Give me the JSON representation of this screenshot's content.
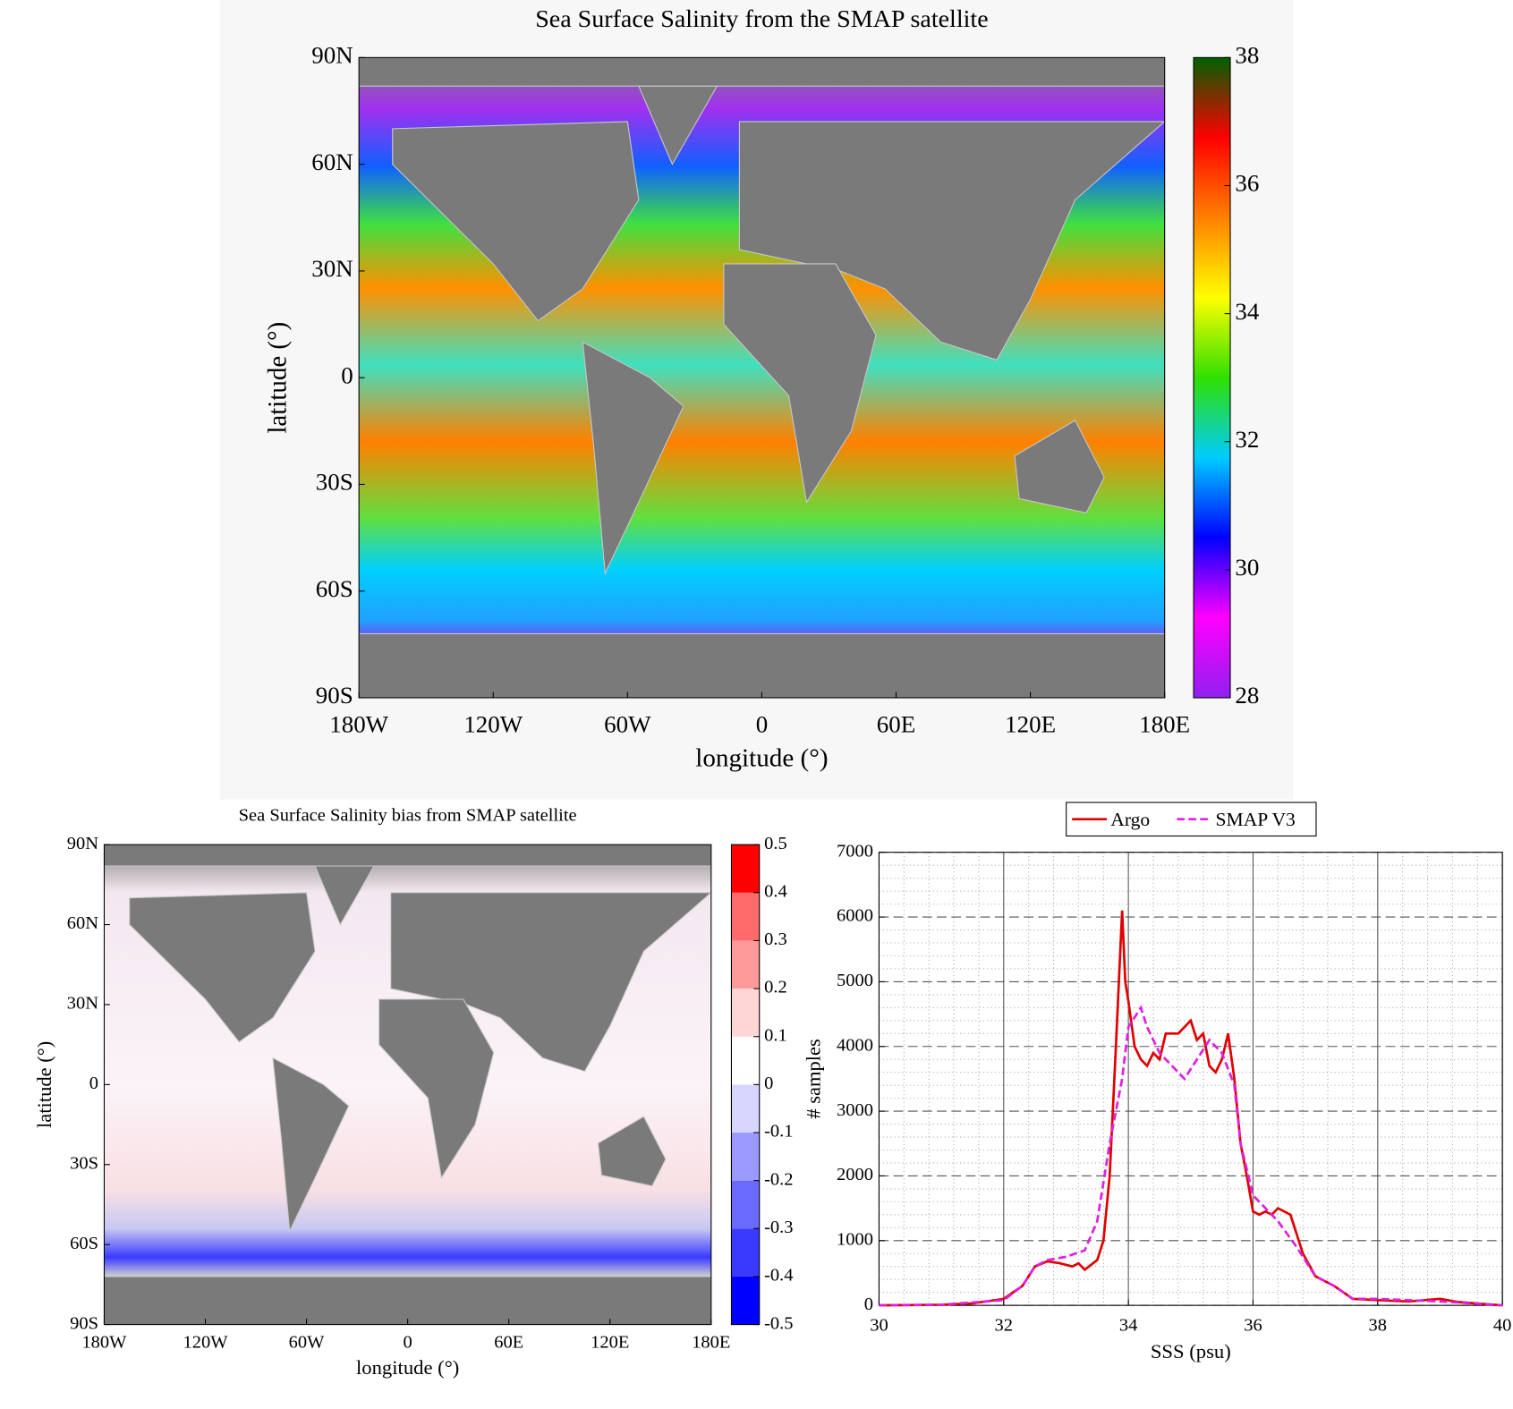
{
  "chart_data": [
    {
      "type": "map",
      "title": "Sea Surface Salinity from the SMAP satellite",
      "xlabel": "longitude (°)",
      "ylabel": "latitude (°)",
      "xlim": [
        -180,
        180
      ],
      "ylim": [
        -90,
        90
      ],
      "xticks": [
        {
          "value": -180,
          "label": "180W"
        },
        {
          "value": -120,
          "label": "120W"
        },
        {
          "value": -60,
          "label": "60W"
        },
        0,
        {
          "value": 60,
          "label": "60E"
        },
        {
          "value": 120,
          "label": "120E"
        },
        {
          "value": 180,
          "label": "180E"
        }
      ],
      "yticks": [
        {
          "value": -90,
          "label": "90S"
        },
        {
          "value": -60,
          "label": "60S"
        },
        {
          "value": -30,
          "label": "30S"
        },
        0,
        {
          "value": 30,
          "label": "30N"
        },
        {
          "value": 60,
          "label": "60N"
        },
        {
          "value": 90,
          "label": "90N"
        }
      ],
      "colorbar": {
        "lim": [
          28,
          38
        ],
        "ticks": [
          28,
          30,
          32,
          34,
          36,
          38
        ],
        "colors": [
          "#9020f0",
          "#ff00ff",
          "#0000ff",
          "#00ccff",
          "#30e000",
          "#ffff00",
          "#ff8000",
          "#ff0000",
          "#006000"
        ],
        "discrete": false
      }
    },
    {
      "type": "map",
      "title": "Sea Surface Salinity bias from SMAP satellite",
      "xlabel": "longitude (°)",
      "ylabel": "latitude (°)",
      "xlim": [
        -180,
        180
      ],
      "ylim": [
        -90,
        90
      ],
      "xticks": [
        {
          "value": -180,
          "label": "180W"
        },
        {
          "value": -120,
          "label": "120W"
        },
        {
          "value": -60,
          "label": "60W"
        },
        0,
        {
          "value": 60,
          "label": "60E"
        },
        {
          "value": 120,
          "label": "120E"
        },
        {
          "value": 180,
          "label": "180E"
        }
      ],
      "yticks": [
        {
          "value": -90,
          "label": "90S"
        },
        {
          "value": -60,
          "label": "60S"
        },
        {
          "value": -30,
          "label": "30S"
        },
        0,
        {
          "value": 30,
          "label": "30N"
        },
        {
          "value": 60,
          "label": "60N"
        },
        {
          "value": 90,
          "label": "90N"
        }
      ],
      "colorbar": {
        "lim": [
          -0.5,
          0.5
        ],
        "ticks": [
          -0.5,
          -0.4,
          -0.3,
          -0.2,
          -0.1,
          0,
          0.1,
          0.2,
          0.3,
          0.4,
          0.5
        ],
        "colors": [
          "#0000ff",
          "#3a3aff",
          "#6a6aff",
          "#9a9aff",
          "#d6d6ff",
          "#ffffff",
          "#ffd6d6",
          "#ff9a9a",
          "#ff6a6a",
          "#ff0000"
        ],
        "discrete": true
      }
    },
    {
      "type": "line",
      "xlabel": "SSS (psu)",
      "ylabel": "# samples",
      "xlim": [
        30,
        40
      ],
      "ylim": [
        0,
        7000
      ],
      "xticks": [
        30,
        32,
        34,
        36,
        38,
        40
      ],
      "yticks": [
        0,
        1000,
        2000,
        3000,
        4000,
        5000,
        6000,
        7000
      ],
      "grid": true,
      "legend": "top",
      "series": [
        {
          "name": "Argo",
          "color": "#e00000",
          "dash": false,
          "x": [
            30,
            31,
            31.5,
            32,
            32.3,
            32.5,
            32.7,
            32.9,
            33.1,
            33.2,
            33.3,
            33.5,
            33.6,
            33.7,
            33.8,
            33.9,
            33.95,
            34.0,
            34.1,
            34.2,
            34.3,
            34.4,
            34.5,
            34.6,
            34.8,
            35.0,
            35.1,
            35.2,
            35.3,
            35.4,
            35.5,
            35.6,
            35.7,
            35.8,
            35.9,
            36.0,
            36.1,
            36.2,
            36.3,
            36.4,
            36.6,
            36.8,
            37.0,
            37.3,
            37.6,
            38,
            38.5,
            39,
            39.3,
            40
          ],
          "values": [
            0,
            10,
            30,
            100,
            300,
            600,
            680,
            650,
            600,
            650,
            550,
            700,
            1000,
            2000,
            4000,
            6100,
            5000,
            4700,
            4000,
            3800,
            3700,
            3900,
            3800,
            4200,
            4200,
            4400,
            4100,
            4200,
            3700,
            3600,
            3800,
            4200,
            3500,
            2500,
            2000,
            1450,
            1400,
            1450,
            1400,
            1500,
            1400,
            800,
            450,
            300,
            100,
            80,
            60,
            100,
            50,
            0
          ]
        },
        {
          "name": "SMAP V3",
          "color": "#e020e0",
          "dash": true,
          "x": [
            30,
            31,
            32,
            32.3,
            32.5,
            32.7,
            33.0,
            33.3,
            33.5,
            33.7,
            33.9,
            34.0,
            34.2,
            34.3,
            34.5,
            34.7,
            34.9,
            35.1,
            35.3,
            35.5,
            35.7,
            35.8,
            36.0,
            36.2,
            36.4,
            36.7,
            37.0,
            37.3,
            37.6,
            38,
            38.5,
            39,
            40
          ],
          "values": [
            0,
            10,
            80,
            300,
            600,
            700,
            750,
            850,
            1300,
            2500,
            3500,
            4300,
            4600,
            4300,
            3900,
            3700,
            3500,
            3800,
            4100,
            3900,
            3400,
            2500,
            1700,
            1500,
            1300,
            900,
            450,
            300,
            100,
            100,
            80,
            60,
            0
          ]
        }
      ]
    }
  ]
}
